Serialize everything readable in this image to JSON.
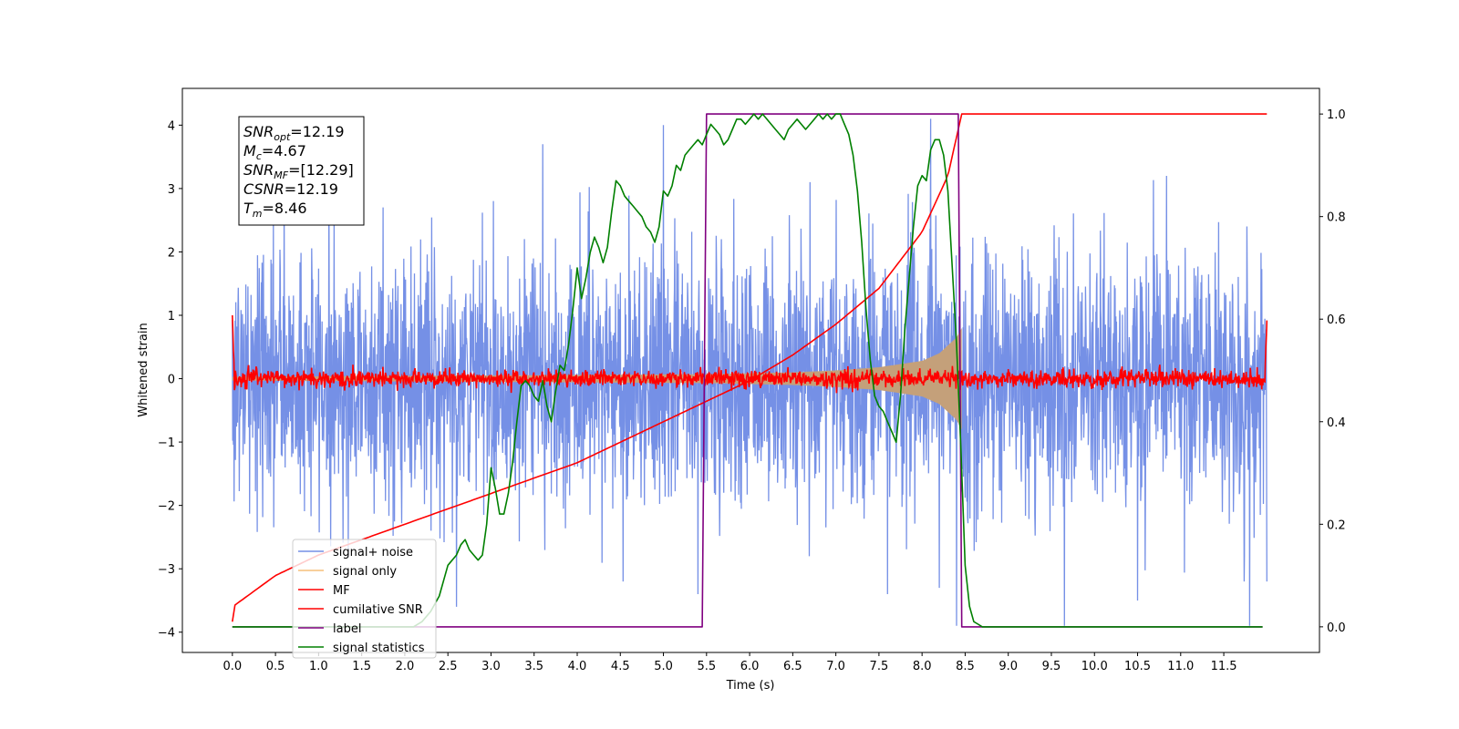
{
  "chart_data": {
    "type": "line",
    "xlabel": "Time (s)",
    "ylabel": "Whitened strain",
    "xlim": [
      -0.58,
      12.61
    ],
    "ylim": [
      -4.32,
      4.58
    ],
    "y2lim": [
      -0.05,
      1.05
    ],
    "x_ticks": [
      0.0,
      0.5,
      1.0,
      1.5,
      2.0,
      2.5,
      3.0,
      3.5,
      4.0,
      4.5,
      5.0,
      5.5,
      6.0,
      6.5,
      7.0,
      7.5,
      8.0,
      8.5,
      9.0,
      9.5,
      10.0,
      10.5,
      11.0,
      11.5
    ],
    "x_tick_labels": [
      "0.0",
      "0.5",
      "1.0",
      "1.5",
      "2.0",
      "2.5",
      "3.0",
      "3.5",
      "4.0",
      "4.5",
      "5.0",
      "5.5",
      "6.0",
      "6.5",
      "7.0",
      "7.5",
      "8.0",
      "8.5",
      "9.0",
      "9.5",
      "10.0",
      "10.5",
      "11.0",
      "11.5"
    ],
    "y_ticks": [
      -4,
      -3,
      -2,
      -1,
      0,
      1,
      2,
      3,
      4
    ],
    "y_tick_labels": [
      "−4",
      "−3",
      "−2",
      "−1",
      "0",
      "1",
      "2",
      "3",
      "4"
    ],
    "y2_ticks": [
      0.0,
      0.2,
      0.4,
      0.6,
      0.8,
      1.0
    ],
    "y2_tick_labels": [
      "0.0",
      "0.2",
      "0.4",
      "0.6",
      "0.8",
      "1.0"
    ],
    "grid": false,
    "legend_position": "lower-left",
    "annotation": [
      {
        "sym": "SNR",
        "sub": "opt",
        "value": "=12.19"
      },
      {
        "sym": "M",
        "sub": "c",
        "value": "=4.67"
      },
      {
        "sym": "SNR",
        "sub": "MF",
        "value": "=[12.29]"
      },
      {
        "sym": "CSNR",
        "sub": "",
        "value": "=12.19"
      },
      {
        "sym": "T",
        "sub": "m",
        "value": "=8.46"
      }
    ],
    "series": [
      {
        "name": "signal+ noise",
        "axis": "left",
        "color": "#7590e6",
        "x_range": [
          0.0,
          12.0
        ],
        "sigma": 1.0,
        "extreme_peaks": {
          "x": [
            0.6,
            3.6,
            5.0,
            6.7,
            8.1,
            10.75,
            11.8
          ],
          "y": [
            3.2,
            3.7,
            4.0,
            3.1,
            4.1,
            4.15,
            3.3
          ]
        },
        "extreme_troughs": {
          "x": [
            0.75,
            2.6,
            5.4,
            7.6,
            8.2,
            8.4,
            9.65,
            10.5,
            11.8
          ],
          "y": [
            -3.6,
            -3.6,
            -3.4,
            -3.4,
            -3.3,
            -3.9,
            -3.9,
            -3.5,
            -3.9
          ]
        }
      },
      {
        "name": "signal only",
        "axis": "left",
        "color": "#f5bf7a",
        "x_range": [
          0.0,
          8.46
        ],
        "envelope": {
          "x": [
            0.0,
            5.5,
            6.5,
            7.0,
            7.5,
            8.0,
            8.2,
            8.4,
            8.46
          ],
          "y": [
            0.03,
            0.07,
            0.1,
            0.13,
            0.18,
            0.28,
            0.4,
            0.65,
            0.8
          ]
        }
      },
      {
        "name": "MF",
        "axis": "left",
        "color": "#ff0000",
        "x_range": [
          0.0,
          12.0
        ],
        "noise_amp": 0.07,
        "edge_start": 1.0,
        "edge_end": 0.92
      },
      {
        "name": "cumilative SNR",
        "axis": "right",
        "color": "#ff0000",
        "x": [
          0.0,
          0.01,
          0.5,
          1.0,
          1.5,
          2.0,
          2.5,
          3.0,
          3.5,
          4.0,
          4.5,
          5.0,
          5.5,
          6.0,
          6.5,
          7.0,
          7.5,
          8.0,
          8.3,
          8.46,
          12.0
        ],
        "y": [
          0.01,
          0.04,
          0.1,
          0.14,
          0.17,
          0.2,
          0.23,
          0.26,
          0.29,
          0.32,
          0.36,
          0.4,
          0.44,
          0.48,
          0.53,
          0.59,
          0.66,
          0.77,
          0.88,
          1.0,
          1.0
        ]
      },
      {
        "name": "label",
        "axis": "right",
        "color": "#800080",
        "x": [
          0.0,
          5.45,
          5.5,
          8.42,
          8.46,
          11.95
        ],
        "y": [
          0.0,
          0.0,
          1.0,
          1.0,
          0.0,
          0.0
        ]
      },
      {
        "name": "signal statistics",
        "axis": "right",
        "color": "#008000",
        "x": [
          0.0,
          2.0,
          2.1,
          2.2,
          2.3,
          2.4,
          2.5,
          2.55,
          2.6,
          2.65,
          2.7,
          2.75,
          2.8,
          2.85,
          2.9,
          2.95,
          3.0,
          3.05,
          3.1,
          3.15,
          3.2,
          3.25,
          3.3,
          3.35,
          3.4,
          3.45,
          3.5,
          3.55,
          3.6,
          3.65,
          3.7,
          3.75,
          3.8,
          3.85,
          3.9,
          3.95,
          4.0,
          4.05,
          4.1,
          4.15,
          4.2,
          4.25,
          4.3,
          4.35,
          4.4,
          4.45,
          4.5,
          4.55,
          4.6,
          4.65,
          4.7,
          4.75,
          4.8,
          4.85,
          4.9,
          4.95,
          5.0,
          5.05,
          5.1,
          5.15,
          5.2,
          5.25,
          5.3,
          5.35,
          5.4,
          5.45,
          5.5,
          5.55,
          5.6,
          5.65,
          5.7,
          5.75,
          5.8,
          5.85,
          5.9,
          5.95,
          6.0,
          6.05,
          6.1,
          6.15,
          6.2,
          6.25,
          6.3,
          6.35,
          6.4,
          6.45,
          6.5,
          6.55,
          6.6,
          6.65,
          6.7,
          6.75,
          6.8,
          6.85,
          6.9,
          6.95,
          7.0,
          7.05,
          7.1,
          7.15,
          7.2,
          7.25,
          7.3,
          7.35,
          7.4,
          7.45,
          7.5,
          7.55,
          7.6,
          7.65,
          7.7,
          7.75,
          7.8,
          7.85,
          7.9,
          7.95,
          8.0,
          8.05,
          8.1,
          8.15,
          8.2,
          8.25,
          8.3,
          8.35,
          8.4,
          8.45,
          8.5,
          8.55,
          8.6,
          8.65,
          8.7,
          8.8,
          9.0,
          9.5,
          10.0,
          11.0,
          11.95
        ],
        "y": [
          0.0,
          0.0,
          0.0,
          0.01,
          0.03,
          0.06,
          0.12,
          0.13,
          0.14,
          0.16,
          0.17,
          0.15,
          0.14,
          0.13,
          0.14,
          0.2,
          0.31,
          0.27,
          0.22,
          0.22,
          0.26,
          0.32,
          0.4,
          0.47,
          0.48,
          0.47,
          0.45,
          0.44,
          0.48,
          0.43,
          0.4,
          0.46,
          0.51,
          0.5,
          0.55,
          0.62,
          0.7,
          0.64,
          0.68,
          0.73,
          0.76,
          0.74,
          0.71,
          0.74,
          0.81,
          0.87,
          0.86,
          0.84,
          0.83,
          0.82,
          0.81,
          0.8,
          0.78,
          0.77,
          0.75,
          0.78,
          0.85,
          0.84,
          0.86,
          0.9,
          0.89,
          0.92,
          0.93,
          0.94,
          0.95,
          0.94,
          0.96,
          0.98,
          0.97,
          0.96,
          0.94,
          0.95,
          0.97,
          0.99,
          0.99,
          0.98,
          0.99,
          1.0,
          0.99,
          1.0,
          0.99,
          0.98,
          0.97,
          0.96,
          0.95,
          0.97,
          0.98,
          0.99,
          0.98,
          0.97,
          0.98,
          0.99,
          1.0,
          0.99,
          1.0,
          0.99,
          1.0,
          1.0,
          0.98,
          0.96,
          0.92,
          0.85,
          0.75,
          0.62,
          0.52,
          0.45,
          0.43,
          0.42,
          0.4,
          0.38,
          0.36,
          0.45,
          0.58,
          0.68,
          0.78,
          0.86,
          0.88,
          0.87,
          0.93,
          0.95,
          0.95,
          0.92,
          0.85,
          0.7,
          0.55,
          0.35,
          0.12,
          0.04,
          0.01,
          0.005,
          0.0,
          0.0,
          0.0,
          0.0,
          0.0,
          0.0,
          0.0
        ]
      }
    ]
  }
}
